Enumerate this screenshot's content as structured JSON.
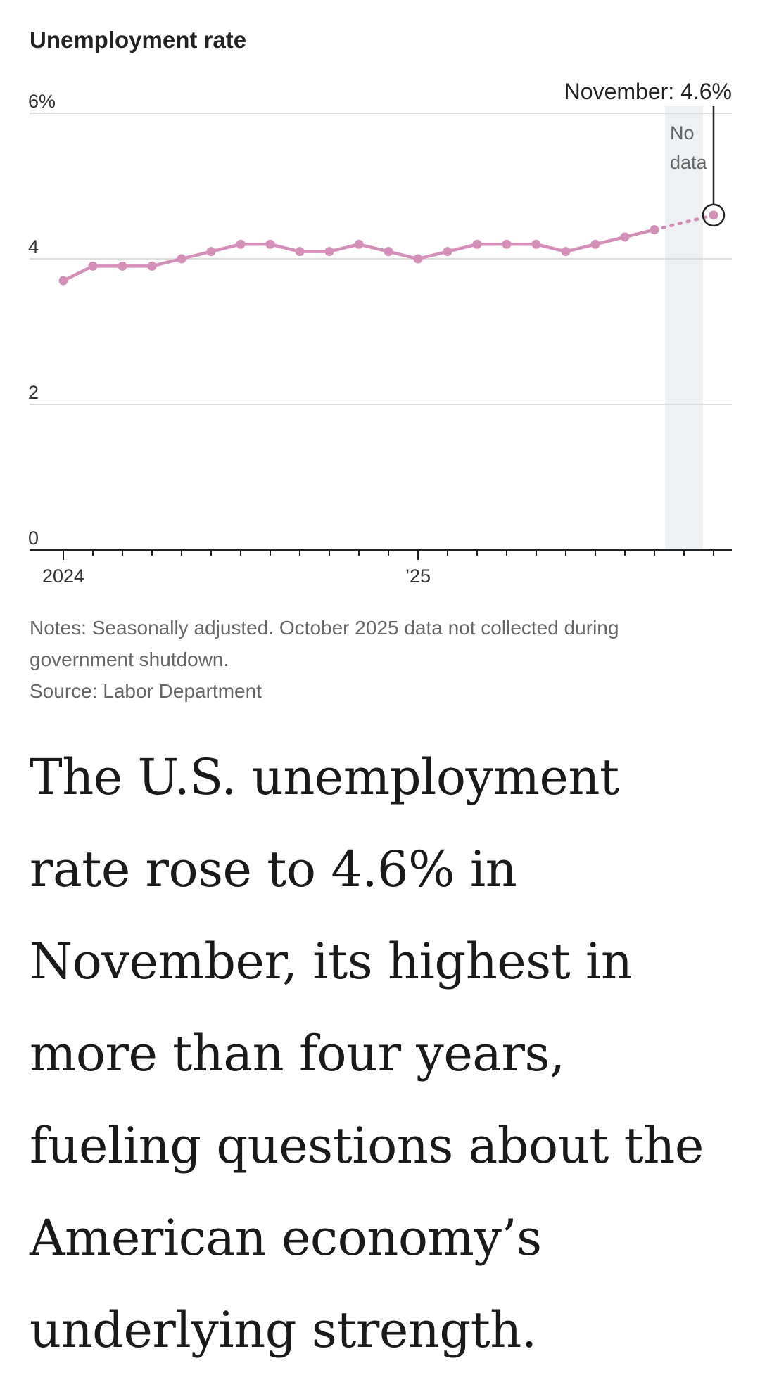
{
  "chart_data": {
    "type": "line",
    "title": "Unemployment rate",
    "ylim": [
      0,
      6
    ],
    "y_ticks": [
      {
        "value": 6,
        "label": "6%"
      },
      {
        "value": 4,
        "label": "4"
      },
      {
        "value": 2,
        "label": "2"
      },
      {
        "value": 0,
        "label": "0"
      }
    ],
    "x_tick_labels": [
      {
        "month_index": 0,
        "label": "2024"
      },
      {
        "month_index": 12,
        "label": "’25"
      }
    ],
    "x_months_total": 23,
    "x": [
      "Jan 2024",
      "Feb 2024",
      "Mar 2024",
      "Apr 2024",
      "May 2024",
      "Jun 2024",
      "Jul 2024",
      "Aug 2024",
      "Sep 2024",
      "Oct 2024",
      "Nov 2024",
      "Dec 2024",
      "Jan 2025",
      "Feb 2025",
      "Mar 2025",
      "Apr 2025",
      "May 2025",
      "Jun 2025",
      "Jul 2025",
      "Aug 2025",
      "Sep 2025",
      "Nov 2025"
    ],
    "series": [
      {
        "color": "#d48fb8",
        "points": [
          {
            "month_index": 0,
            "value": 3.7
          },
          {
            "month_index": 1,
            "value": 3.9
          },
          {
            "month_index": 2,
            "value": 3.9
          },
          {
            "month_index": 3,
            "value": 3.9
          },
          {
            "month_index": 4,
            "value": 4.0
          },
          {
            "month_index": 5,
            "value": 4.1
          },
          {
            "month_index": 6,
            "value": 4.2
          },
          {
            "month_index": 7,
            "value": 4.2
          },
          {
            "month_index": 8,
            "value": 4.1
          },
          {
            "month_index": 9,
            "value": 4.1
          },
          {
            "month_index": 10,
            "value": 4.2
          },
          {
            "month_index": 11,
            "value": 4.1
          },
          {
            "month_index": 12,
            "value": 4.0
          },
          {
            "month_index": 13,
            "value": 4.1
          },
          {
            "month_index": 14,
            "value": 4.2
          },
          {
            "month_index": 15,
            "value": 4.2
          },
          {
            "month_index": 16,
            "value": 4.2
          },
          {
            "month_index": 17,
            "value": 4.1
          },
          {
            "month_index": 18,
            "value": 4.2
          },
          {
            "month_index": 19,
            "value": 4.3
          },
          {
            "month_index": 20,
            "value": 4.4
          },
          {
            "month_index": 22,
            "value": 4.6
          }
        ]
      }
    ],
    "gap": {
      "month_index": 21,
      "label_lines": [
        "No",
        "data"
      ]
    },
    "callout": {
      "month_index": 22,
      "value": 4.6,
      "label": "November: 4.6%"
    },
    "grid": true
  },
  "notes": {
    "line1": "Notes: Seasonally adjusted. October 2025 data not collected during",
    "line2": "government shutdown.",
    "source": "Source: Labor Department"
  },
  "headline": {
    "lines": [
      "The U.S. unemployment",
      "rate rose to 4.6% in",
      "November, its highest in",
      "more than four years,",
      "fueling questions about the",
      "American economy’s",
      "underlying strength."
    ]
  }
}
